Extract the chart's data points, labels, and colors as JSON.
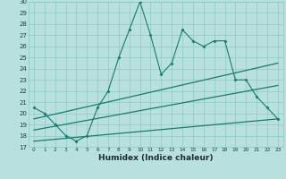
{
  "xlabel": "Humidex (Indice chaleur)",
  "x_values": [
    0,
    1,
    2,
    3,
    4,
    5,
    6,
    7,
    8,
    9,
    10,
    11,
    12,
    13,
    14,
    15,
    16,
    17,
    18,
    19,
    20,
    21,
    22,
    23
  ],
  "main_line": [
    20.5,
    20.0,
    19.0,
    18.0,
    17.5,
    18.0,
    20.5,
    22.0,
    25.0,
    27.5,
    30.0,
    27.0,
    23.5,
    24.5,
    27.5,
    26.5,
    26.0,
    26.5,
    26.5,
    23.0,
    23.0,
    21.5,
    20.5,
    19.5
  ],
  "trend1_x": [
    0,
    23
  ],
  "trend1_y": [
    19.5,
    24.5
  ],
  "trend2_x": [
    0,
    23
  ],
  "trend2_y": [
    18.5,
    22.5
  ],
  "trend3_x": [
    0,
    23
  ],
  "trend3_y": [
    17.5,
    19.5
  ],
  "ylim": [
    17,
    30
  ],
  "yticks": [
    17,
    18,
    19,
    20,
    21,
    22,
    23,
    24,
    25,
    26,
    27,
    28,
    29,
    30
  ],
  "xticks": [
    0,
    1,
    2,
    3,
    4,
    5,
    6,
    7,
    8,
    9,
    10,
    11,
    12,
    13,
    14,
    15,
    16,
    17,
    18,
    19,
    20,
    21,
    22,
    23
  ],
  "line_color": "#1a7a6e",
  "bg_color": "#b8e0de",
  "grid_color": "#8fc8c4",
  "tick_label_color": "#1a4040",
  "xlabel_color": "#1a3030",
  "xlabel_fontsize": 6.5,
  "xlabel_fontweight": "bold"
}
